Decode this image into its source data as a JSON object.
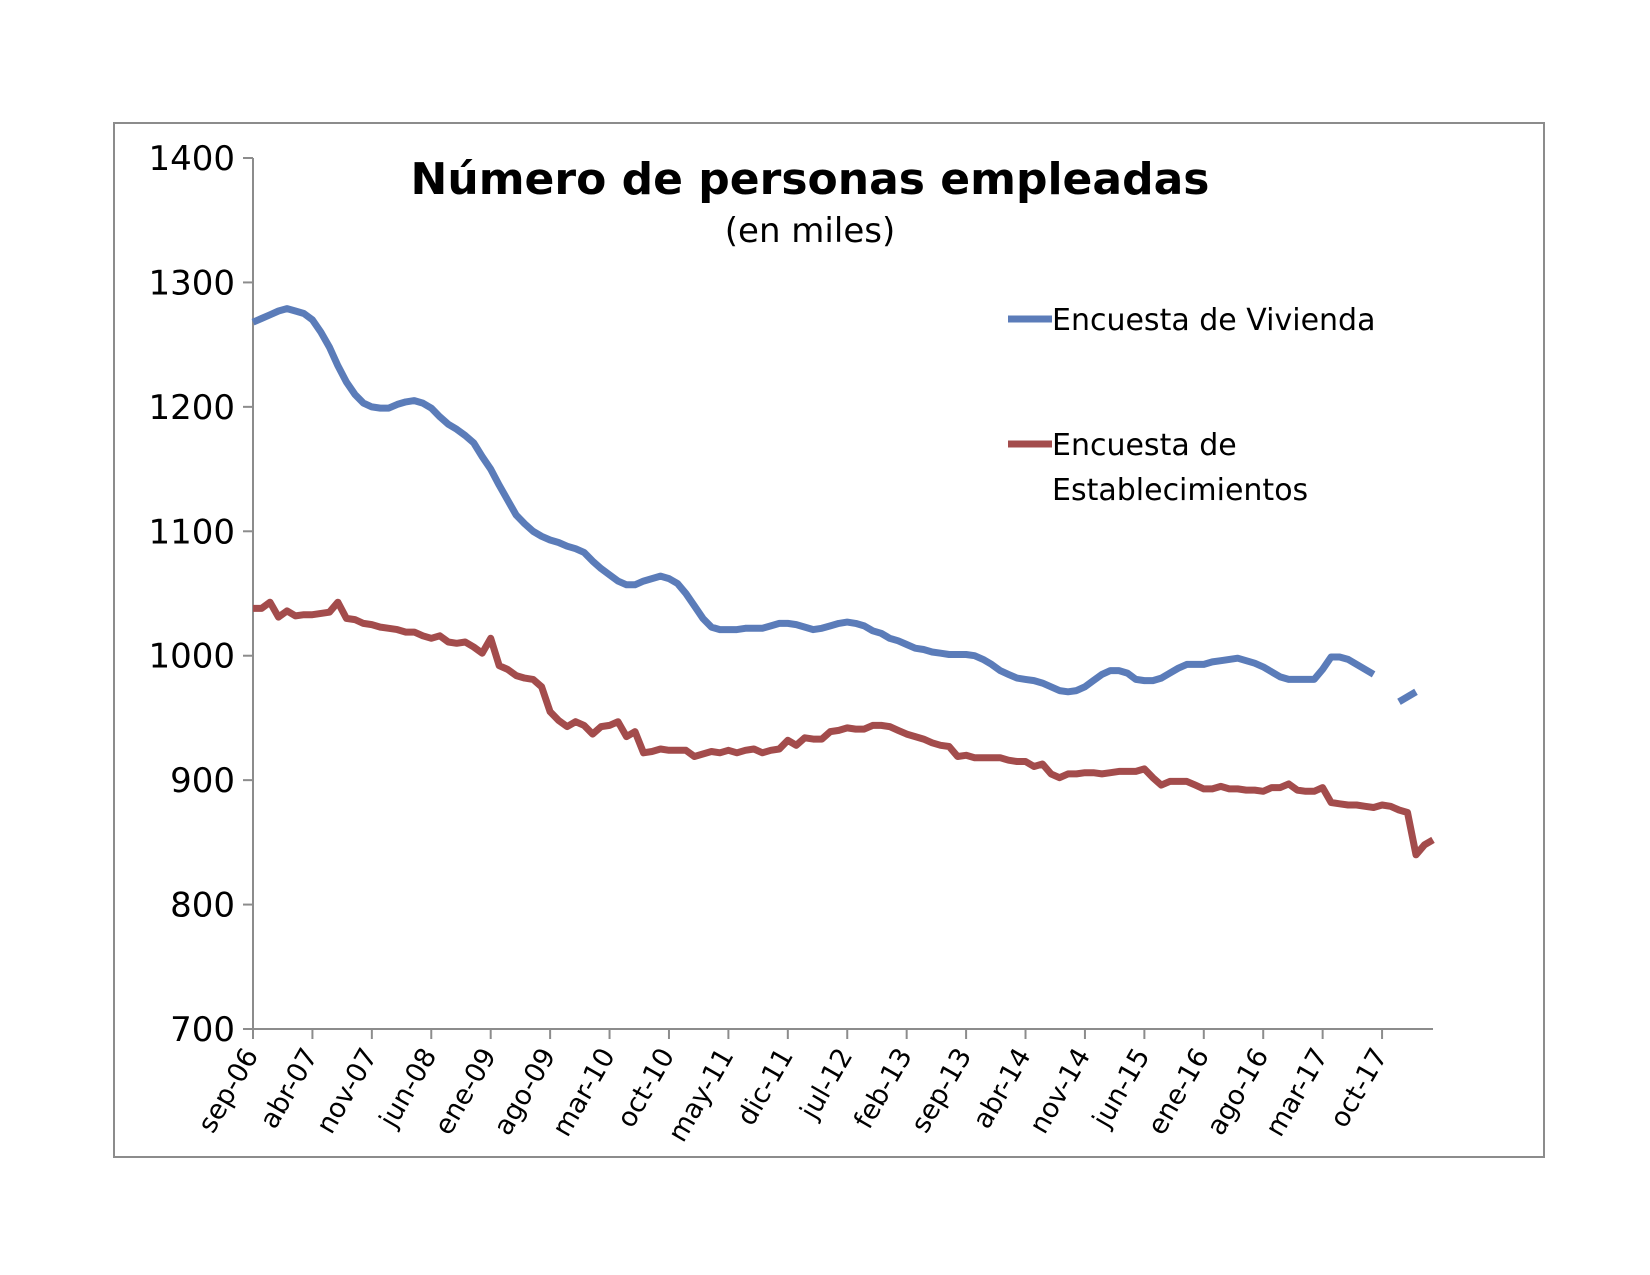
{
  "chart_data": {
    "type": "line",
    "title": "Número de personas empleadas",
    "subtitle": "(en miles)",
    "ylim": [
      700,
      1400
    ],
    "y_ticks": [
      700,
      800,
      900,
      1000,
      1100,
      1200,
      1300,
      1400
    ],
    "x_start": "sep-06",
    "x_ticks": [
      "sep-06",
      "abr-07",
      "nov-07",
      "jun-08",
      "ene-09",
      "ago-09",
      "mar-10",
      "oct-10",
      "may-11",
      "dic-11",
      "jul-12",
      "feb-13",
      "sep-13",
      "abr-14",
      "nov-14",
      "jun-15",
      "ene-16",
      "ago-16",
      "mar-17",
      "oct-17"
    ],
    "legend_position": "right",
    "grid": false,
    "series": [
      {
        "name": "Encuesta de Vivienda",
        "color": "#5b7cb9",
        "legend_lines": [
          "Encuesta de Vivienda"
        ],
        "values": [
          1268,
          1271,
          1274,
          1277,
          1279,
          1277,
          1275,
          1270,
          1260,
          1248,
          1233,
          1220,
          1210,
          1203,
          1200,
          1199,
          1199,
          1202,
          1204,
          1205,
          1203,
          1199,
          1192,
          1186,
          1182,
          1177,
          1171,
          1160,
          1150,
          1137,
          1125,
          1113,
          1106,
          1100,
          1096,
          1093,
          1091,
          1088,
          1086,
          1083,
          1076,
          1070,
          1065,
          1060,
          1057,
          1057,
          1060,
          1062,
          1064,
          1062,
          1058,
          1050,
          1040,
          1030,
          1023,
          1021,
          1021,
          1021,
          1022,
          1022,
          1022,
          1024,
          1026,
          1026,
          1025,
          1023,
          1021,
          1022,
          1024,
          1026,
          1027,
          1026,
          1024,
          1020,
          1018,
          1014,
          1012,
          1009,
          1006,
          1005,
          1003,
          1002,
          1001,
          1001,
          1001,
          1000,
          997,
          993,
          988,
          985,
          982,
          981,
          980,
          978,
          975,
          972,
          971,
          972,
          975,
          980,
          985,
          988,
          988,
          986,
          981,
          980,
          980,
          982,
          986,
          990,
          993,
          993,
          993,
          995,
          996,
          997,
          998,
          996,
          994,
          991,
          987,
          983,
          981,
          981,
          981,
          981,
          989,
          999,
          999,
          997,
          993,
          989,
          985,
          null,
          null,
          963,
          967,
          971
        ]
      },
      {
        "name": "Encuesta de Establecimientos",
        "color": "#a34c4c",
        "legend_lines": [
          "Encuesta de",
          "Establecimientos"
        ],
        "values": [
          1038,
          1038,
          1043,
          1031,
          1036,
          1032,
          1033,
          1033,
          1034,
          1035,
          1043,
          1030,
          1029,
          1026,
          1025,
          1023,
          1022,
          1021,
          1019,
          1019,
          1016,
          1014,
          1016,
          1011,
          1010,
          1011,
          1007,
          1002,
          1014,
          992,
          989,
          984,
          982,
          981,
          975,
          955,
          948,
          943,
          947,
          944,
          937,
          943,
          944,
          947,
          935,
          939,
          922,
          923,
          925,
          924,
          924,
          924,
          919,
          921,
          923,
          922,
          924,
          922,
          924,
          925,
          922,
          924,
          925,
          932,
          928,
          934,
          933,
          933,
          939,
          940,
          942,
          941,
          941,
          944,
          944,
          943,
          940,
          937,
          935,
          933,
          930,
          928,
          927,
          919,
          920,
          918,
          918,
          918,
          918,
          916,
          915,
          915,
          911,
          913,
          905,
          902,
          905,
          905,
          906,
          906,
          905,
          906,
          907,
          907,
          907,
          909,
          902,
          896,
          899,
          899,
          899,
          896,
          893,
          893,
          895,
          893,
          893,
          892,
          892,
          891,
          894,
          894,
          897,
          892,
          891,
          891,
          894,
          882,
          881,
          880,
          880,
          879,
          878,
          880,
          879,
          876,
          874,
          840,
          848,
          852
        ]
      }
    ]
  }
}
